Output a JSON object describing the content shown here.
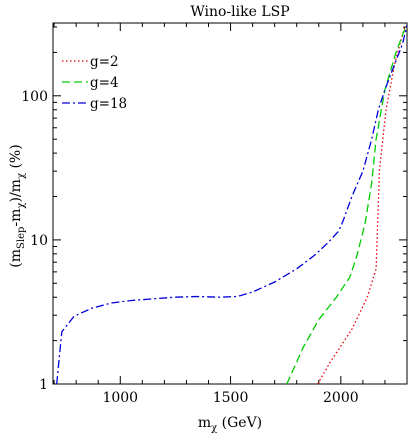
{
  "chart_data": {
    "type": "line",
    "title": "Wino-like LSP",
    "xlabel": {
      "base": "m",
      "sub": "χ",
      "rest": " (GeV)"
    },
    "ylabel": {
      "p1": "(m",
      "sub1": "Slep",
      "p2": "-m",
      "sub2": "χ",
      "p3": ")/m",
      "sub3": "χ",
      "p4": " (%)"
    },
    "xlim": [
      695,
      2300
    ],
    "ylim": [
      1,
      320
    ],
    "yscale": "log",
    "grid": false,
    "legend_position": "top-left",
    "x_ticks": [
      {
        "value": 1000,
        "label": "1000"
      },
      {
        "value": 1500,
        "label": "1500"
      },
      {
        "value": 2000,
        "label": "2000"
      }
    ],
    "y_ticks": [
      {
        "value": 1,
        "label": "1"
      },
      {
        "value": 10,
        "label": "10"
      },
      {
        "value": 100,
        "label": "100"
      }
    ],
    "series": [
      {
        "name": "g=2",
        "color": "#e8000b",
        "dash": "1.5,2.5",
        "x": [
          1895,
          1950,
          2050,
          2120,
          2160,
          2175,
          2205,
          2245,
          2290
        ],
        "y": [
          1.0,
          1.4,
          2.4,
          4.0,
          6.3,
          30,
          80,
          170,
          300
        ]
      },
      {
        "name": "g=4",
        "color": "#00cc00",
        "dash": "8,4",
        "x": [
          1755,
          1830,
          1900,
          1980,
          2040,
          2070,
          2110,
          2140,
          2160,
          2200,
          2250,
          2290
        ],
        "y": [
          1.0,
          1.8,
          2.8,
          4.0,
          5.5,
          7.5,
          13,
          25,
          50,
          110,
          200,
          290
        ]
      },
      {
        "name": "g=18",
        "color": "#0000dd",
        "dash": "8,3,2,3",
        "x": [
          712,
          735,
          790,
          870,
          960,
          1050,
          1150,
          1250,
          1350,
          1450,
          1530,
          1600,
          1700,
          1800,
          1880,
          1940,
          1990,
          2010,
          2050,
          2100,
          2140,
          2170,
          2200,
          2240,
          2280,
          2300
        ],
        "y": [
          1.0,
          2.3,
          2.95,
          3.35,
          3.65,
          3.8,
          3.9,
          4.0,
          4.05,
          4.0,
          4.05,
          4.35,
          5.1,
          6.3,
          7.8,
          9.5,
          11.5,
          13.5,
          20,
          30,
          50,
          80,
          110,
          160,
          230,
          310
        ]
      }
    ]
  }
}
